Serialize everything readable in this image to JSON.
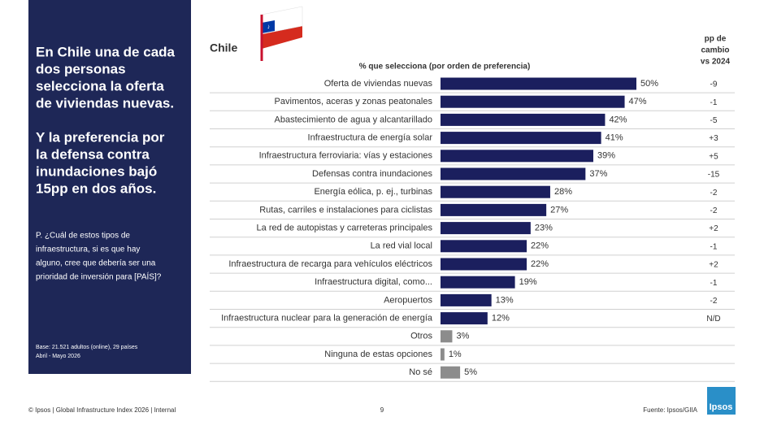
{
  "panel": {
    "headline": [
      [
        "En Chile una de cada",
        "dos personas",
        "selecciona la oferta",
        "de viviendas nuevas."
      ],
      [
        "Y la preferencia por",
        "la defensa contra",
        "inundaciones bajó",
        "15pp en dos años."
      ]
    ],
    "question": [
      "P. ¿Cuál de estos tipos de",
      "infraestructura, si es que hay",
      "alguno, cree que debería ser una",
      "prioridad de inversión para [PAÍS]?"
    ],
    "base": [
      "Base: 21.521 adultos (online), 29 países",
      "Abril - Mayo 2026"
    ]
  },
  "chart_data": {
    "type": "hbar",
    "title": "Chile",
    "subtitle": "% que selecciona (por orden de preferencia)",
    "categories": [
      "Oferta de viviendas nuevas",
      "Pavimentos, aceras y zonas peatonales",
      "Abastecimiento de agua y alcantarillado",
      "Infraestructura de energía solar",
      "Infraestructura ferroviaria: vías y estaciones",
      "Defensas contra inundaciones",
      "Energía eólica, p. ej., turbinas",
      "Rutas, carriles e instalaciones para ciclistas",
      "La red de autopistas y carreteras principales",
      "La red vial local",
      "Infraestructura de recarga para vehículos eléctricos",
      "Infraestructura digital, como...",
      "Aeropuertos",
      "Infraestructura nuclear para la generación de energía",
      "Otros",
      "Ninguna de estas opciones",
      "No sé"
    ],
    "values": [
      50,
      47,
      42,
      41,
      39,
      37,
      28,
      27,
      23,
      22,
      22,
      19,
      13,
      12,
      3,
      1,
      5
    ],
    "value_labels": [
      "50%",
      "47%",
      "42%",
      "41%",
      "39%",
      "37%",
      "28%",
      "27%",
      "23%",
      "22%",
      "22%",
      "19%",
      "13%",
      "12%",
      "3%",
      "1%",
      "5%"
    ],
    "colors": [
      "#1b1f5e",
      "#1b1f5e",
      "#1b1f5e",
      "#1b1f5e",
      "#1b1f5e",
      "#1b1f5e",
      "#1b1f5e",
      "#1b1f5e",
      "#1b1f5e",
      "#1b1f5e",
      "#1b1f5e",
      "#1b1f5e",
      "#1b1f5e",
      "#1b1f5e",
      "#8c8c8c",
      "#8c8c8c",
      "#8c8c8c"
    ],
    "change_header": [
      "pp de",
      "cambio",
      "vs 2024"
    ],
    "changes": [
      "-9",
      "-1",
      "-5",
      "+3",
      "+5",
      "-15",
      "-2",
      "-2",
      "+2",
      "-1",
      "+2",
      "-1",
      "-2",
      "N/D",
      "",
      "",
      ""
    ]
  },
  "footer": {
    "left": "© Ipsos | Global Infrastructure Index 2026 | Internal",
    "page": "9",
    "source": "Fuente: Ipsos/GIIA",
    "logo": "Ipsos"
  }
}
